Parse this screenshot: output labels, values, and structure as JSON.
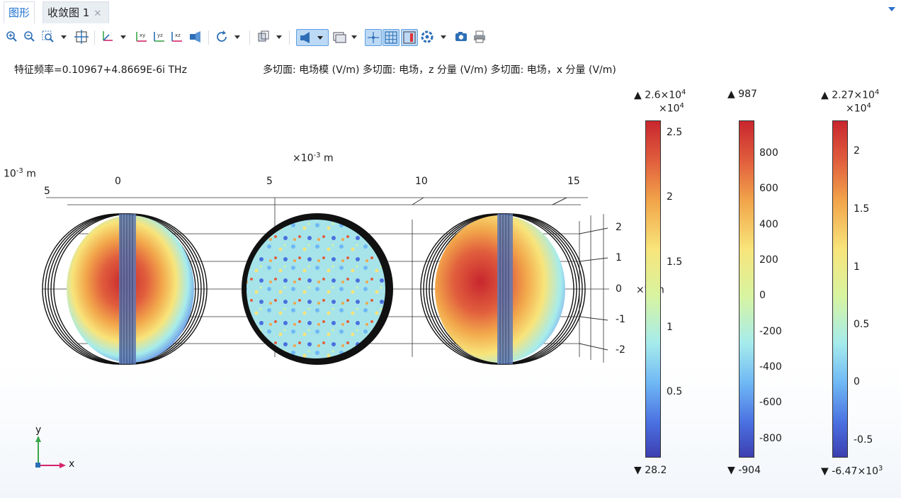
{
  "tabs": {
    "graphics": "图形",
    "convergence": "收敛图 1"
  },
  "toolbar": {
    "icons": [
      "zoom-in-icon",
      "zoom-out-icon",
      "zoom-box-icon",
      "zoom-extents-icon",
      "axis-orientation-icon",
      "view-xy-icon",
      "view-yz-icon",
      "view-xz-icon",
      "go-to-view-icon",
      "reset-view-icon",
      "scene-light-icon",
      "transparency-icon",
      "render-wireframe-icon",
      "show-grid-icon",
      "show-axis-icon",
      "view-settings-icon",
      "image-snapshot-icon",
      "print-icon"
    ]
  },
  "plot": {
    "eigenfrequency": "特征频率=0.10967+4.8669E-6i THz",
    "title": "多切面: 电场模 (V/m)  多切面: 电场，z 分量 (V/m)  多切面: 电场，x 分量 (V/m)",
    "xaxis_unit_prefix": "×10",
    "xaxis_unit_exp": "-3",
    "xaxis_unit": " m",
    "zaxis_unit_prefix": "10",
    "zaxis_unit_exp": "-3",
    "zaxis_unit": " m",
    "yaxis_unit_prefix": "×",
    "yaxis_unit_exp": "-3",
    "yaxis_unit": " m",
    "xticks": [
      "5",
      "0",
      "5",
      "10",
      "15"
    ],
    "yticks": [
      "2",
      "1",
      "0",
      "-1",
      "-2"
    ],
    "triad_y": "y",
    "triad_x": "x"
  },
  "colorbars": [
    {
      "name": "electric-field-norm",
      "max_prefix": "▲ 2.6×10",
      "max_exp": "4",
      "scale_prefix": "×10",
      "scale_exp": "4",
      "min": "▼ 28.2",
      "ticks": [
        "2.5",
        "2",
        "1.5",
        "1",
        "0.5"
      ]
    },
    {
      "name": "electric-field-z",
      "max_prefix": "▲ 987",
      "max_exp": "",
      "scale_prefix": "",
      "scale_exp": "",
      "min": "▼ -904",
      "ticks": [
        "800",
        "600",
        "400",
        "200",
        "0",
        "-200",
        "-400",
        "-600",
        "-800"
      ]
    },
    {
      "name": "electric-field-x",
      "max_prefix": "▲ 2.27×10",
      "max_exp": "4",
      "scale_prefix": "×10",
      "scale_exp": "4",
      "min_prefix": "▼ -6.47×10",
      "min_exp": "3",
      "ticks": [
        "2",
        "1.5",
        "1",
        "0.5",
        "0",
        "-0.5"
      ]
    }
  ],
  "colors": {
    "accent": "#1b6fd1",
    "toggle_active": "#bcd9f5",
    "colormap_high": "#c8262e",
    "colormap_low": "#3d3fb0",
    "y_axis_arrow": "#3aa64a",
    "x_axis_arrow": "#d6246b"
  }
}
